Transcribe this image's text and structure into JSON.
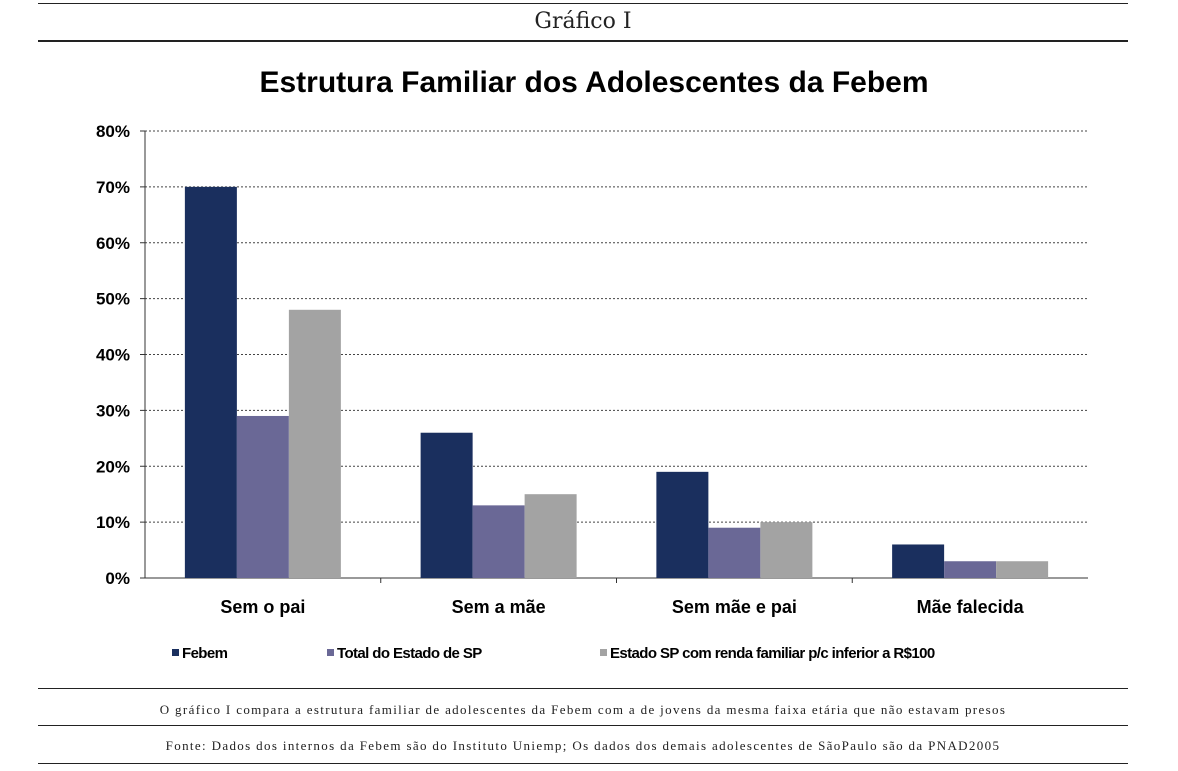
{
  "header": {
    "figure_label": "Gráfico I"
  },
  "chart_data": {
    "type": "bar",
    "title": "Estrutura Familiar dos Adolescentes da Febem",
    "xlabel": "",
    "ylabel": "",
    "ylim": [
      0,
      80
    ],
    "yticks": [
      "0%",
      "10%",
      "20%",
      "30%",
      "40%",
      "50%",
      "60%",
      "70%",
      "80%"
    ],
    "ytick_values": [
      0,
      10,
      20,
      30,
      40,
      50,
      60,
      70,
      80
    ],
    "grid": true,
    "legend_position": "bottom",
    "categories": [
      "Sem o pai",
      "Sem a mãe",
      "Sem mãe e pai",
      "Mãe falecida"
    ],
    "series": [
      {
        "name": "Febem",
        "values": [
          70,
          26,
          19,
          6
        ],
        "color": "#1a2f5e"
      },
      {
        "name": "Total do Estado de SP",
        "values": [
          29,
          13,
          9,
          3
        ],
        "color": "#6a6896"
      },
      {
        "name": "Estado SP com renda familiar p/c inferior a R$100",
        "values": [
          48,
          15,
          10,
          3
        ],
        "color": "#a3a3a3"
      }
    ]
  },
  "footer": {
    "description": "O gráfico I compara a estrutura familiar de adolescentes da Febem com a de jovens da mesma faixa etária que não estavam presos",
    "source": "Fonte: Dados dos internos da Febem são do Instituto Uniemp; Os dados dos demais adolescentes de SãoPaulo são da PNAD2005"
  }
}
